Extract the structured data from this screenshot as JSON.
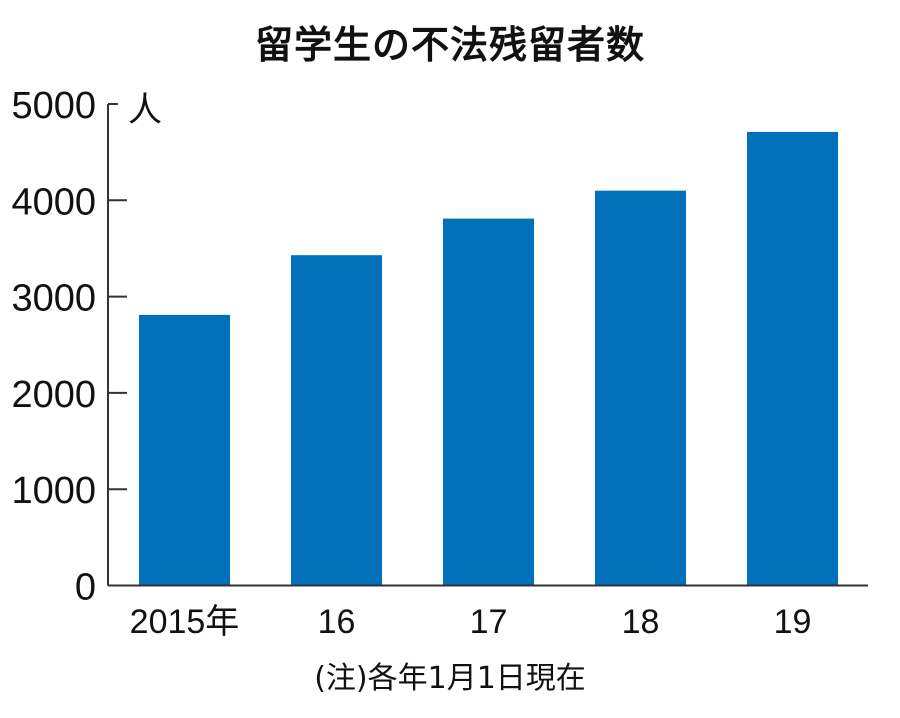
{
  "chart_data": {
    "type": "bar",
    "title": "留学生の不法残留者数",
    "ylabel": "人",
    "xlabel": "",
    "categories": [
      "2015年",
      "16",
      "17",
      "18",
      "19"
    ],
    "values": [
      2810,
      3430,
      3810,
      4100,
      4710
    ],
    "ylim": [
      0,
      5000
    ],
    "yticks": [
      0,
      1000,
      2000,
      3000,
      4000,
      5000
    ],
    "grid": false,
    "bar_color": "#0070b8",
    "note": "(注)各年1月1日現在"
  }
}
